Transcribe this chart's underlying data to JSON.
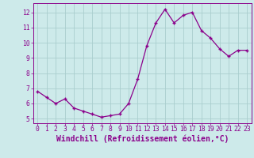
{
  "x": [
    0,
    1,
    2,
    3,
    4,
    5,
    6,
    7,
    8,
    9,
    10,
    11,
    12,
    13,
    14,
    15,
    16,
    17,
    18,
    19,
    20,
    21,
    22,
    23
  ],
  "y": [
    6.8,
    6.4,
    6.0,
    6.3,
    5.7,
    5.5,
    5.3,
    5.1,
    5.2,
    5.3,
    6.0,
    7.6,
    9.8,
    11.3,
    12.2,
    11.3,
    11.8,
    12.0,
    10.8,
    10.3,
    9.6,
    9.1,
    9.5,
    9.5
  ],
  "line_color": "#8b008b",
  "marker": "+",
  "bg_color": "#cdeaea",
  "grid_color": "#aacece",
  "xlabel": "Windchill (Refroidissement éolien,°C)",
  "ylabel_ticks": [
    5,
    6,
    7,
    8,
    9,
    10,
    11,
    12
  ],
  "xlim": [
    -0.5,
    23.5
  ],
  "ylim": [
    4.7,
    12.6
  ],
  "xticks": [
    0,
    1,
    2,
    3,
    4,
    5,
    6,
    7,
    8,
    9,
    10,
    11,
    12,
    13,
    14,
    15,
    16,
    17,
    18,
    19,
    20,
    21,
    22,
    23
  ],
  "tick_fontsize": 5.8,
  "label_fontsize": 7.0
}
